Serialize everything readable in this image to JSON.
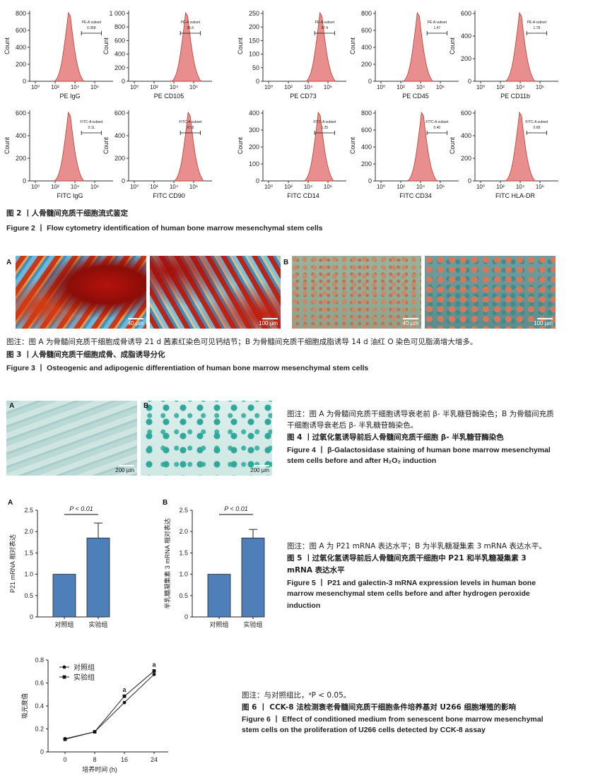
{
  "fig2": {
    "panels": [
      {
        "xlabel": "PE IgG",
        "gate": "PE-A subset",
        "pct": "0.368",
        "ymax": "800",
        "yticks": [
          "0",
          "200",
          "400",
          "600",
          "800"
        ]
      },
      {
        "xlabel": "PE CD105",
        "gate": "PE-A subset",
        "pct": "95.6",
        "ymax": "1 000",
        "yticks": [
          "0",
          "200",
          "400",
          "600",
          "800",
          "1 000"
        ]
      },
      {
        "xlabel": "PE CD73",
        "gate": "PE-A subset",
        "pct": "97.4",
        "ymax": "",
        "yticks": [
          "0",
          "50",
          "100",
          "150",
          "200",
          "250"
        ]
      },
      {
        "xlabel": "PE CD45",
        "gate": "PE-A subset",
        "pct": "1.47",
        "ymax": "800",
        "yticks": [
          "0",
          "200",
          "400",
          "600",
          "800"
        ]
      },
      {
        "xlabel": "PE CD11b",
        "gate": "PE-A subset",
        "pct": "1.78",
        "ymax": "600",
        "yticks": [
          "0",
          "200",
          "400",
          "600"
        ]
      },
      {
        "xlabel": "FITC IgG",
        "gate": "FITC-A subset",
        "pct": "0.11",
        "ymax": "600",
        "yticks": [
          "0",
          "200",
          "400",
          "600"
        ]
      },
      {
        "xlabel": "FITC CD90",
        "gate": "FITC-A subset",
        "pct": "97.8",
        "ymax": "600",
        "yticks": [
          "0",
          "200",
          "400",
          "600"
        ]
      },
      {
        "xlabel": "FITC CD14",
        "gate": "FITC-A subset",
        "pct": "1.25",
        "ymax": "",
        "yticks": [
          "0",
          "100",
          "200",
          "300",
          "400"
        ]
      },
      {
        "xlabel": "FITC CD34",
        "gate": "FITC-A subset",
        "pct": "0.40",
        "ymax": "",
        "yticks": [
          "0",
          "200",
          "400",
          "600",
          "800"
        ]
      },
      {
        "xlabel": "FITC HLA-DR",
        "gate": "FITC-A subset",
        "pct": "0.68",
        "ymax": "",
        "yticks": [
          "0",
          "200",
          "400",
          "600"
        ]
      }
    ],
    "xticks": [
      "10⁰",
      "10²",
      "10⁴",
      "10⁶"
    ],
    "yaxis_label": "Count",
    "caption_cn": "图 2 丨人骨髓间充质干细胞流式鉴定",
    "caption_en": "Figure 2 丨 Flow cytometry identification of human bone marrow mesenchymal stem cells"
  },
  "fig3": {
    "label_a": "A",
    "label_b": "B",
    "scales": [
      "40 µm",
      "100 µm",
      "40 µm",
      "100 µm"
    ],
    "note": "图注：图 A 为骨髓间充质干细胞成骨诱导 21 d 茜素红染色可见钙结节；B 为骨髓间充质干细胞成脂诱导 14 d 油红 O 染色可见脂滴增大增多。",
    "caption_cn": "图 3 丨人骨髓间充质干细胞成骨、成脂诱导分化",
    "caption_en": "Figure 3 丨 Osteogenic and adipogenic differentiation of human bone marrow mesenchymal stem cells"
  },
  "fig4": {
    "label_a": "A",
    "label_b": "B",
    "scales": [
      "200 µm",
      "200 µm"
    ],
    "note": "图注：图 A 为骨髓间充质干细胞诱导衰老前 β- 半乳糖苷酶染色；B 为骨髓间充质干细胞诱导衰老后 β- 半乳糖苷酶染色。",
    "caption_cn": "图 4 丨过氧化氢诱导前后人骨髓间充质干细胞 β- 半乳糖苷酶染色",
    "caption_en_1": "Figure 4 丨 β-Galactosidase staining of human bone marrow mesenchymal",
    "caption_en_2": "stem cells before and after H₂O₂ induction"
  },
  "fig5": {
    "note": "图注：图 A 为 P21 mRNA 表达水平；B 为半乳糖凝集素 3 mRNA 表达水平。",
    "caption_cn_1": "图 5 丨过氧化氢诱导前后人骨髓间充质干细胞中 P21 和半乳糖凝集素 3",
    "caption_cn_2": "mRNA 表达水平",
    "caption_en_1": "Figure 5 丨 P21 and galectin-3 mRNA expression levels in human bone",
    "caption_en_2": "marrow mesenchymal stem cells before and after hydrogen peroxide",
    "caption_en_3": "induction"
  },
  "fig6": {
    "note": "图注：与对照组比，ᵃP < 0.05。",
    "caption_cn": "图 6 丨 CCK-8 法检测衰老骨髓间充质干细胞条件培养基对 U266 细胞增殖的影响",
    "caption_en_1": "Figure 6 丨 Effect of conditioned medium from senescent bone marrow mesenchymal",
    "caption_en_2": "stem cells on the proliferation of U266 cells detected by CCK-8 assay"
  },
  "chart_data": [
    {
      "type": "bar",
      "panel_label": "A",
      "categories": [
        "对照组",
        "实验组"
      ],
      "values": [
        1.0,
        1.85
      ],
      "errors": [
        0,
        0.35
      ],
      "ylabel": "P21 mRNA 相对表达",
      "ylim": [
        0,
        2.5
      ],
      "yticks": [
        "0",
        "0.5",
        "1.0",
        "1.5",
        "2.0",
        "2.5"
      ],
      "annotation": "P < 0.01",
      "color": "#4f7fb8"
    },
    {
      "type": "bar",
      "panel_label": "B",
      "categories": [
        "对照组",
        "实验组"
      ],
      "values": [
        1.0,
        1.85
      ],
      "errors": [
        0,
        0.2
      ],
      "ylabel": "半乳糖凝集素 3 mRNA 相对表达",
      "ylim": [
        0,
        2.5
      ],
      "yticks": [
        "0",
        "0.5",
        "1.0",
        "1.5",
        "2.0",
        "2.5"
      ],
      "annotation": "P < 0.01",
      "color": "#4f7fb8"
    },
    {
      "type": "line",
      "x": [
        0,
        8,
        16,
        24
      ],
      "xticks": [
        "0",
        "8",
        "16",
        "24"
      ],
      "series": [
        {
          "name": "对照组",
          "values": [
            0.115,
            0.175,
            0.43,
            0.675
          ],
          "marker": "circle"
        },
        {
          "name": "实验组",
          "values": [
            0.11,
            0.175,
            0.485,
            0.705
          ],
          "marker": "square"
        }
      ],
      "sig": [
        "",
        "",
        "a",
        "a"
      ],
      "xlabel": "培养时间 (h)",
      "ylabel": "吸光度值",
      "ylim": [
        0,
        0.8
      ],
      "yticks": [
        "0",
        "0.2",
        "0.4",
        "0.6",
        "0.8"
      ],
      "legend": "top-left"
    }
  ]
}
